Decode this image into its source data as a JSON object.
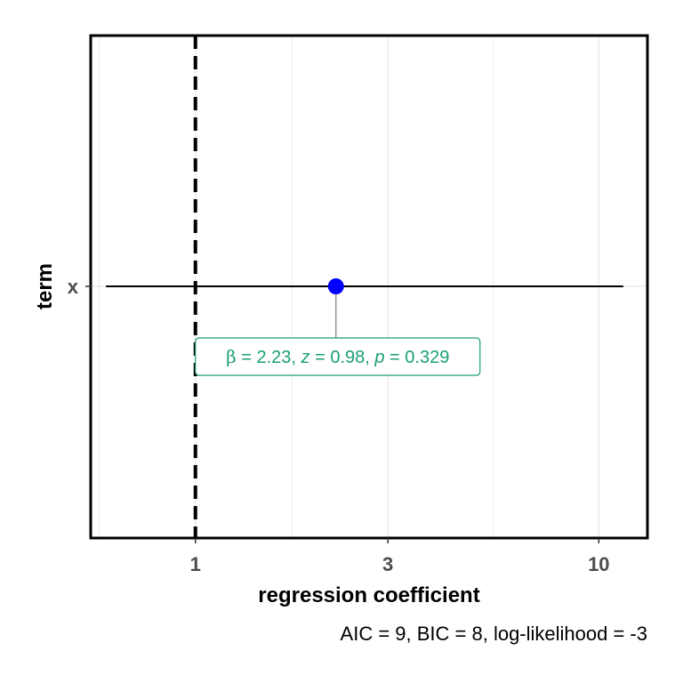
{
  "chart_data": {
    "type": "scatter",
    "subtype": "coefficient-plot",
    "xlabel": "regression coefficient",
    "ylabel": "term",
    "x_scale": "log",
    "xlim": [
      0.55,
      13.2
    ],
    "x_ticks": [
      1,
      3,
      10
    ],
    "x_tick_labels": [
      "1",
      "3",
      "10"
    ],
    "reference_line_x": 1,
    "grid": "vertical only",
    "terms": [
      {
        "term": "x",
        "estimate": 2.23,
        "conf_low": 0.6,
        "conf_high": 11.5,
        "label": {
          "beta_symbol": "β",
          "beta_value": "2.23",
          "z_symbol": "z",
          "z_value": "0.98",
          "p_symbol": "p",
          "p_value": "0.329"
        }
      }
    ],
    "caption": "AIC = 9, BIC = 8, log-likelihood = -3",
    "colors": {
      "point": "#0000ff",
      "label": "#1b9e77",
      "reference_line": "#000000",
      "grid": "#ebebeb",
      "panel_border": "#000000",
      "tick_label": "#4d4d4d"
    }
  }
}
